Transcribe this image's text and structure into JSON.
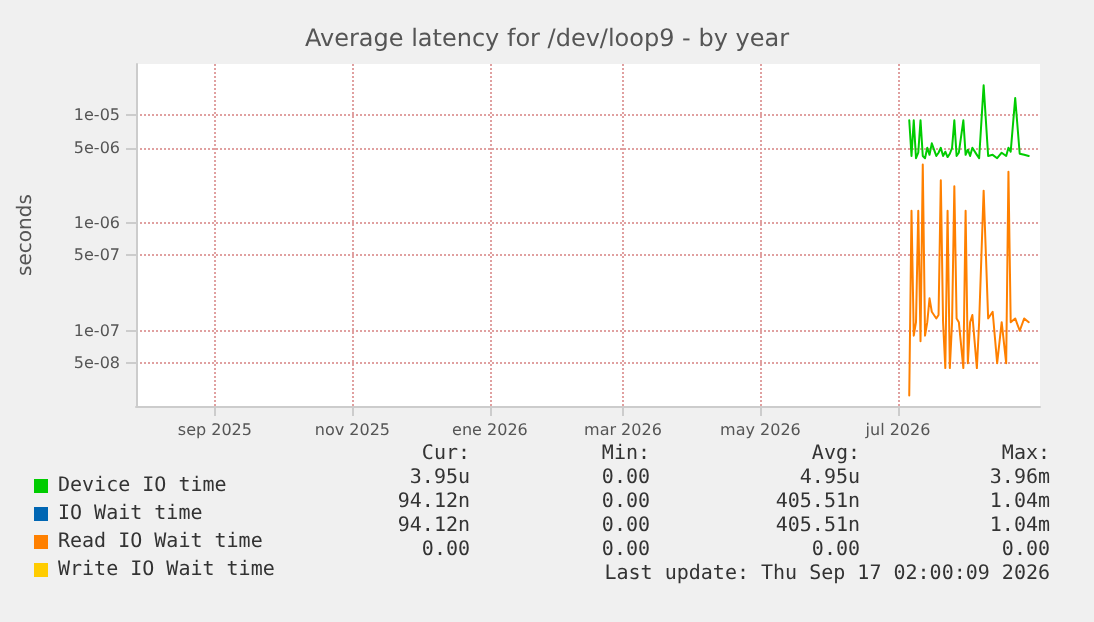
{
  "chart_data": {
    "type": "line",
    "title": "Average latency for /dev/loop9 - by year",
    "ylabel": "seconds",
    "x": [
      "2026-07-06",
      "2026-07-07",
      "2026-07-08",
      "2026-07-09",
      "2026-07-10",
      "2026-07-11",
      "2026-07-12",
      "2026-07-13",
      "2026-07-14",
      "2026-07-15",
      "2026-07-16",
      "2026-07-18",
      "2026-07-19",
      "2026-07-20",
      "2026-07-21",
      "2026-07-22",
      "2026-07-23",
      "2026-07-24",
      "2026-07-25",
      "2026-07-26",
      "2026-07-27",
      "2026-07-28",
      "2026-07-30",
      "2026-07-31",
      "2026-08-01",
      "2026-08-02",
      "2026-08-03",
      "2026-08-05",
      "2026-08-06",
      "2026-08-08",
      "2026-08-10",
      "2026-08-12",
      "2026-08-14",
      "2026-08-16",
      "2026-08-18",
      "2026-08-19",
      "2026-08-20",
      "2026-08-22",
      "2026-08-24",
      "2026-08-26",
      "2026-08-28"
    ],
    "series": [
      {
        "name": "Device IO time",
        "color": "#00cc00",
        "values": [
          9e-06,
          4.2e-06,
          9e-06,
          4e-06,
          4.5e-06,
          9e-06,
          4.2e-06,
          4e-06,
          5e-06,
          4.3e-06,
          5.5e-06,
          4.2e-06,
          4.5e-06,
          5e-06,
          4.2e-06,
          4.6e-06,
          4.1e-06,
          4.4e-06,
          5e-06,
          9e-06,
          4.2e-06,
          4.5e-06,
          9e-06,
          4.3e-06,
          4.8e-06,
          4.2e-06,
          5e-06,
          4.3e-06,
          4e-06,
          1.9e-05,
          4.2e-06,
          4.3e-06,
          4e-06,
          4.5e-06,
          4.2e-06,
          5e-06,
          4.6e-06,
          1.45e-05,
          4.4e-06,
          4.3e-06,
          4.2e-06
        ]
      },
      {
        "name": "IO Wait time",
        "color": "#0066b3",
        "values": [
          null,
          null,
          null,
          null,
          null,
          null,
          null,
          null,
          null,
          null,
          null,
          null,
          null,
          null,
          null,
          null,
          null,
          null,
          null,
          null,
          null,
          null,
          null,
          null,
          null,
          null,
          null,
          null,
          null,
          null,
          null,
          null,
          null,
          null,
          null,
          null,
          null,
          null,
          null,
          null,
          null
        ]
      },
      {
        "name": "Read IO Wait time",
        "color": "#ff8000",
        "values": [
          2.5e-08,
          1.3e-06,
          9e-08,
          1.2e-07,
          1.3e-06,
          8e-08,
          3.5e-06,
          9e-08,
          1.2e-07,
          2e-07,
          1.5e-07,
          1.3e-07,
          1.4e-07,
          2.5e-06,
          1.2e-07,
          4.5e-08,
          1.3e-06,
          4.5e-08,
          1.2e-07,
          2.2e-06,
          1.3e-07,
          1.2e-07,
          4.5e-08,
          1.3e-06,
          5e-08,
          1.2e-07,
          1.4e-07,
          4.5e-08,
          1.2e-07,
          2e-06,
          1.3e-07,
          1.5e-07,
          5e-08,
          1.2e-07,
          5e-08,
          3e-06,
          1.2e-07,
          1.3e-07,
          1e-07,
          1.3e-07,
          1.2e-07
        ]
      },
      {
        "name": "Write IO Wait time",
        "color": "#ffcc00",
        "values": [
          null,
          null,
          null,
          null,
          null,
          null,
          null,
          null,
          null,
          null,
          null,
          null,
          null,
          null,
          null,
          null,
          null,
          null,
          null,
          null,
          null,
          null,
          null,
          null,
          null,
          null,
          null,
          null,
          null,
          null,
          null,
          null,
          null,
          null,
          null,
          null,
          null,
          null,
          null,
          null,
          null
        ]
      }
    ],
    "xlim": [
      "2025-07-28",
      "2026-09-02"
    ],
    "xticks": [
      {
        "value": "2025-09-01",
        "label": "sep 2025"
      },
      {
        "value": "2025-11-01",
        "label": "nov 2025"
      },
      {
        "value": "2026-01-01",
        "label": "ene 2026"
      },
      {
        "value": "2026-03-01",
        "label": "mar 2026"
      },
      {
        "value": "2026-05-01",
        "label": "may 2026"
      },
      {
        "value": "2026-07-01",
        "label": "jul 2026"
      }
    ],
    "ylim": [
      2e-08,
      3e-05
    ],
    "yticks": [
      {
        "value": 5e-08,
        "label": "5e-08"
      },
      {
        "value": 1e-07,
        "label": "1e-07"
      },
      {
        "value": 5e-07,
        "label": "5e-07"
      },
      {
        "value": 1e-06,
        "label": "1e-06"
      },
      {
        "value": 5e-06,
        "label": "5e-06"
      },
      {
        "value": 1e-05,
        "label": "1e-05"
      }
    ],
    "log": "y",
    "grid": true,
    "legend": "bottom left",
    "marker": "none",
    "line_style": "solid",
    "annotations": [
      "Cur:",
      "Min:",
      "Avg:",
      "Max:",
      "3.95u",
      "0.00",
      "4.95u",
      "3.96m",
      "94.12n",
      "0.00",
      "405.51n",
      "1.04m",
      "94.12n",
      "0.00",
      "405.51n",
      "1.04m",
      "0.00",
      "0.00",
      "0.00",
      "0.00",
      "Last update: Thu Sep 17 02:00:09 2026"
    ]
  }
}
